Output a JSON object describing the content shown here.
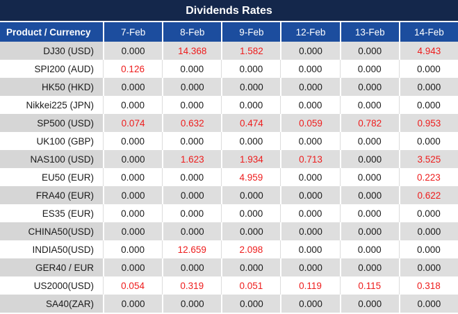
{
  "title": "Dividends Rates",
  "colors": {
    "title_bg": "#14274b",
    "header_bg": "#1c4d9e",
    "row_gray_product": "#d6d6d6",
    "row_gray_value": "#dedede",
    "row_white": "#ffffff",
    "value_red": "#ee1c1c",
    "text_dark": "#1a1a1a",
    "header_text": "#ffffff"
  },
  "table": {
    "product_header": "Product / Currency",
    "date_headers": [
      "7-Feb",
      "8-Feb",
      "9-Feb",
      "12-Feb",
      "13-Feb",
      "14-Feb"
    ],
    "zero_value": "0.000",
    "rows": [
      {
        "product": "DJ30 (USD)",
        "values": [
          "0.000",
          "14.368",
          "1.582",
          "0.000",
          "0.000",
          "4.943"
        ]
      },
      {
        "product": "SPI200 (AUD)",
        "values": [
          "0.126",
          "0.000",
          "0.000",
          "0.000",
          "0.000",
          "0.000"
        ]
      },
      {
        "product": "HK50 (HKD)",
        "values": [
          "0.000",
          "0.000",
          "0.000",
          "0.000",
          "0.000",
          "0.000"
        ]
      },
      {
        "product": "Nikkei225 (JPN)",
        "values": [
          "0.000",
          "0.000",
          "0.000",
          "0.000",
          "0.000",
          "0.000"
        ]
      },
      {
        "product": "SP500 (USD)",
        "values": [
          "0.074",
          "0.632",
          "0.474",
          "0.059",
          "0.782",
          "0.953"
        ]
      },
      {
        "product": "UK100 (GBP)",
        "values": [
          "0.000",
          "0.000",
          "0.000",
          "0.000",
          "0.000",
          "0.000"
        ]
      },
      {
        "product": "NAS100 (USD)",
        "values": [
          "0.000",
          "1.623",
          "1.934",
          "0.713",
          "0.000",
          "3.525"
        ]
      },
      {
        "product": "EU50 (EUR)",
        "values": [
          "0.000",
          "0.000",
          "4.959",
          "0.000",
          "0.000",
          "0.223"
        ]
      },
      {
        "product": "FRA40 (EUR)",
        "values": [
          "0.000",
          "0.000",
          "0.000",
          "0.000",
          "0.000",
          "0.622"
        ]
      },
      {
        "product": "ES35 (EUR)",
        "values": [
          "0.000",
          "0.000",
          "0.000",
          "0.000",
          "0.000",
          "0.000"
        ]
      },
      {
        "product": "CHINA50(USD)",
        "values": [
          "0.000",
          "0.000",
          "0.000",
          "0.000",
          "0.000",
          "0.000"
        ]
      },
      {
        "product": "INDIA50(USD)",
        "values": [
          "0.000",
          "12.659",
          "2.098",
          "0.000",
          "0.000",
          "0.000"
        ]
      },
      {
        "product": "GER40 / EUR",
        "values": [
          "0.000",
          "0.000",
          "0.000",
          "0.000",
          "0.000",
          "0.000"
        ]
      },
      {
        "product": "US2000(USD)",
        "values": [
          "0.054",
          "0.319",
          "0.051",
          "0.119",
          "0.115",
          "0.318"
        ]
      },
      {
        "product": "SA40(ZAR)",
        "values": [
          "0.000",
          "0.000",
          "0.000",
          "0.000",
          "0.000",
          "0.000"
        ]
      }
    ]
  }
}
